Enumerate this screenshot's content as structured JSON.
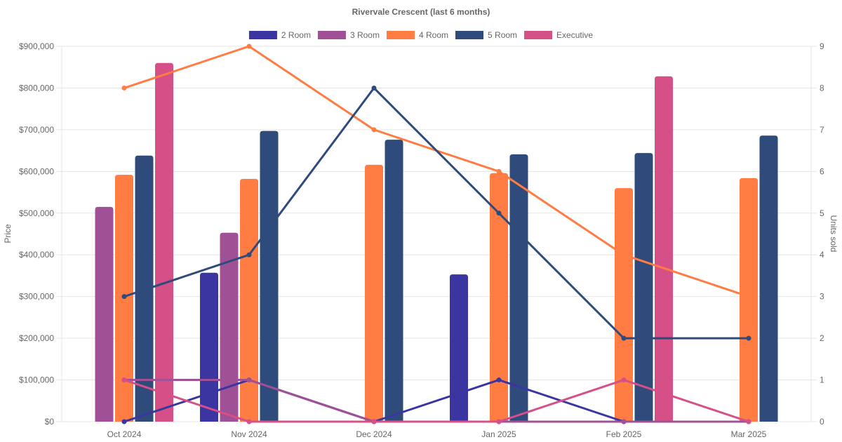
{
  "chart_data": {
    "type": "bar",
    "title": "Rivervale Crescent (last 6 months)",
    "categories": [
      "Oct 2024",
      "Nov 2024",
      "Dec 2024",
      "Jan 2025",
      "Feb 2025",
      "Mar 2025"
    ],
    "ylabel": "Price",
    "y2label": "Units sold",
    "ylim": [
      0,
      900000
    ],
    "y2lim": [
      0,
      9
    ],
    "yticks": [
      "$0",
      "$100,000",
      "$200,000",
      "$300,000",
      "$400,000",
      "$500,000",
      "$600,000",
      "$700,000",
      "$800,000",
      "$900,000"
    ],
    "y2ticks": [
      "0",
      "1",
      "2",
      "3",
      "4",
      "5",
      "6",
      "7",
      "8",
      "9"
    ],
    "grid": true,
    "legend_position": "top",
    "series": [
      {
        "name": "2 Room",
        "color": "#3a35a0",
        "price": [
          null,
          357000,
          null,
          353000,
          null,
          null
        ],
        "units": [
          0,
          1,
          0,
          1,
          0,
          0
        ]
      },
      {
        "name": "3 Room",
        "color": "#a05195",
        "price": [
          515000,
          453000,
          null,
          null,
          null,
          null
        ],
        "units": [
          1,
          1,
          0,
          0,
          0,
          0
        ]
      },
      {
        "name": "4 Room",
        "color": "#ff7c43",
        "price": [
          592000,
          582000,
          616000,
          596000,
          560000,
          584000
        ],
        "units": [
          8,
          9,
          7,
          6,
          4,
          3
        ]
      },
      {
        "name": "5 Room",
        "color": "#2f4b7c",
        "price": [
          638000,
          697000,
          676000,
          641000,
          644000,
          686000
        ],
        "units": [
          3,
          4,
          8,
          5,
          2,
          2
        ]
      },
      {
        "name": "Executive",
        "color": "#d45087",
        "price": [
          860000,
          null,
          null,
          null,
          828000,
          null
        ],
        "units": [
          1,
          0,
          0,
          0,
          1,
          0
        ]
      }
    ]
  }
}
